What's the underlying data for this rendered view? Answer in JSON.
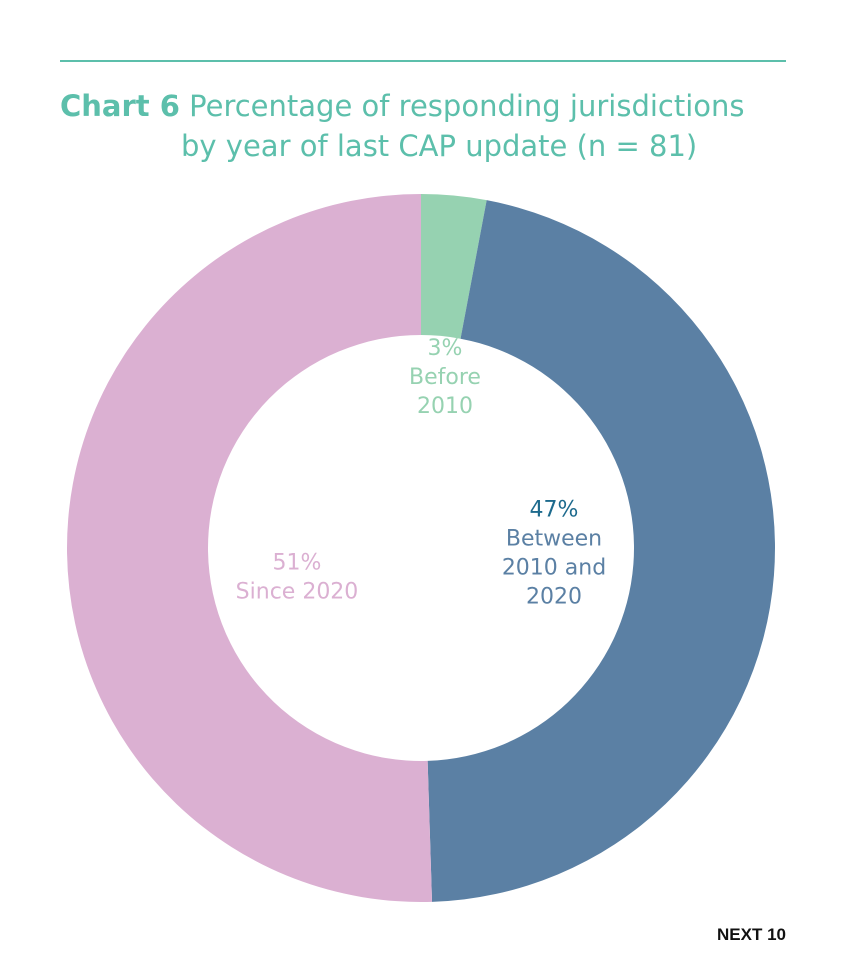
{
  "title_prefix": "Chart 6",
  "title_line1": "Percentage of responding jurisdictions",
  "title_line2": "by year of last CAP update (n = 81)",
  "footer": "NEXT 10",
  "chart_data": {
    "type": "pie",
    "style": "donut",
    "slices": [
      {
        "pct_label": "3%",
        "label_lines": [
          "Before",
          "2010"
        ],
        "value": 3,
        "color": "#96d2b1",
        "pct_color": "#96d2b1"
      },
      {
        "pct_label": "47%",
        "label_lines": [
          "Between",
          "2010 and",
          "2020"
        ],
        "value": 47,
        "color": "#5b80a4",
        "pct_color": "#1d6a8d"
      },
      {
        "pct_label": "51%",
        "label_lines": [
          "Since 2020"
        ],
        "value": 51,
        "color": "#dbb0d2",
        "pct_color": "#dbb0d2"
      }
    ]
  }
}
